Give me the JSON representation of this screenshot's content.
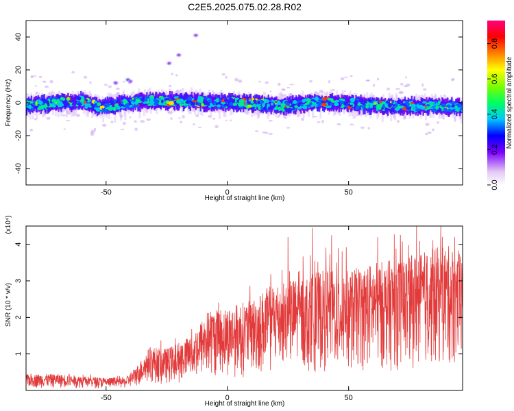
{
  "title": "C2E5.2025.075.02.28.R02",
  "colors": {
    "signal": "#e23b3b",
    "frame": "#000000"
  },
  "chart_data": [
    {
      "type": "heatmap",
      "xlabel": "Height of straight line (km)",
      "ylabel": "Frequency (Hz)",
      "xlim": [
        -83,
        97
      ],
      "ylim": [
        -50,
        50
      ],
      "xticks": [
        -50,
        0,
        50
      ],
      "yticks": [
        -40,
        -20,
        0,
        20,
        40
      ],
      "colorbar": {
        "label": "Normalized spectral amplitude",
        "range": [
          0.0,
          0.93
        ],
        "ticks": [
          0.0,
          0.2,
          0.4,
          0.6,
          0.8
        ],
        "tick_labels": [
          "0.0",
          "0.2",
          "0.4",
          "0.6",
          "0.8"
        ]
      },
      "ridge": [
        {
          "x": -83,
          "y": -2
        },
        {
          "x": -70,
          "y": 0
        },
        {
          "x": -60,
          "y": 1
        },
        {
          "x": -53,
          "y": -3
        },
        {
          "x": -45,
          "y": -1
        },
        {
          "x": -35,
          "y": 1
        },
        {
          "x": -25,
          "y": 1
        },
        {
          "x": -15,
          "y": 1
        },
        {
          "x": -5,
          "y": 0
        },
        {
          "x": 5,
          "y": 0
        },
        {
          "x": 15,
          "y": -1
        },
        {
          "x": 25,
          "y": -2
        },
        {
          "x": 35,
          "y": 0
        },
        {
          "x": 45,
          "y": 0
        },
        {
          "x": 55,
          "y": -1
        },
        {
          "x": 65,
          "y": -2
        },
        {
          "x": 75,
          "y": -2
        },
        {
          "x": 85,
          "y": -2
        },
        {
          "x": 97,
          "y": -3
        }
      ],
      "outliers": [
        {
          "x": -13,
          "y": 41
        },
        {
          "x": -20,
          "y": 29
        },
        {
          "x": -24,
          "y": 24
        },
        {
          "x": -41,
          "y": 14
        },
        {
          "x": -46,
          "y": 12
        },
        {
          "x": -40,
          "y": 13
        }
      ]
    },
    {
      "type": "line",
      "xlabel": "Height of straight line (km)",
      "ylabel": "SNR (10 * v/v)",
      "scale_label": "(x10⁴)",
      "xlim": [
        -83,
        97
      ],
      "ylim": [
        0,
        4.5
      ],
      "xticks": [
        -50,
        0,
        50
      ],
      "yticks": [
        1,
        2,
        3,
        4
      ],
      "envelope": [
        {
          "x": -83,
          "y": 0.45
        },
        {
          "x": -70,
          "y": 0.45
        },
        {
          "x": -60,
          "y": 0.4
        },
        {
          "x": -50,
          "y": 0.35
        },
        {
          "x": -42,
          "y": 0.35
        },
        {
          "x": -37,
          "y": 0.7
        },
        {
          "x": -32,
          "y": 1.2
        },
        {
          "x": -25,
          "y": 1.15
        },
        {
          "x": -15,
          "y": 1.5
        },
        {
          "x": -8,
          "y": 2.2
        },
        {
          "x": 0,
          "y": 2.3
        },
        {
          "x": 10,
          "y": 2.5
        },
        {
          "x": 20,
          "y": 3.0
        },
        {
          "x": 30,
          "y": 3.1
        },
        {
          "x": 40,
          "y": 3.3
        },
        {
          "x": 50,
          "y": 3.3
        },
        {
          "x": 60,
          "y": 3.5
        },
        {
          "x": 70,
          "y": 3.6
        },
        {
          "x": 80,
          "y": 3.8
        },
        {
          "x": 90,
          "y": 4.0
        },
        {
          "x": 97,
          "y": 3.8
        }
      ],
      "peaks": [
        {
          "x": 25,
          "y": 4.2
        },
        {
          "x": 35,
          "y": 4.45
        },
        {
          "x": 43,
          "y": 4.25
        },
        {
          "x": 62,
          "y": 4.2
        },
        {
          "x": 78,
          "y": 4.5
        },
        {
          "x": 88,
          "y": 4.5
        }
      ]
    }
  ]
}
